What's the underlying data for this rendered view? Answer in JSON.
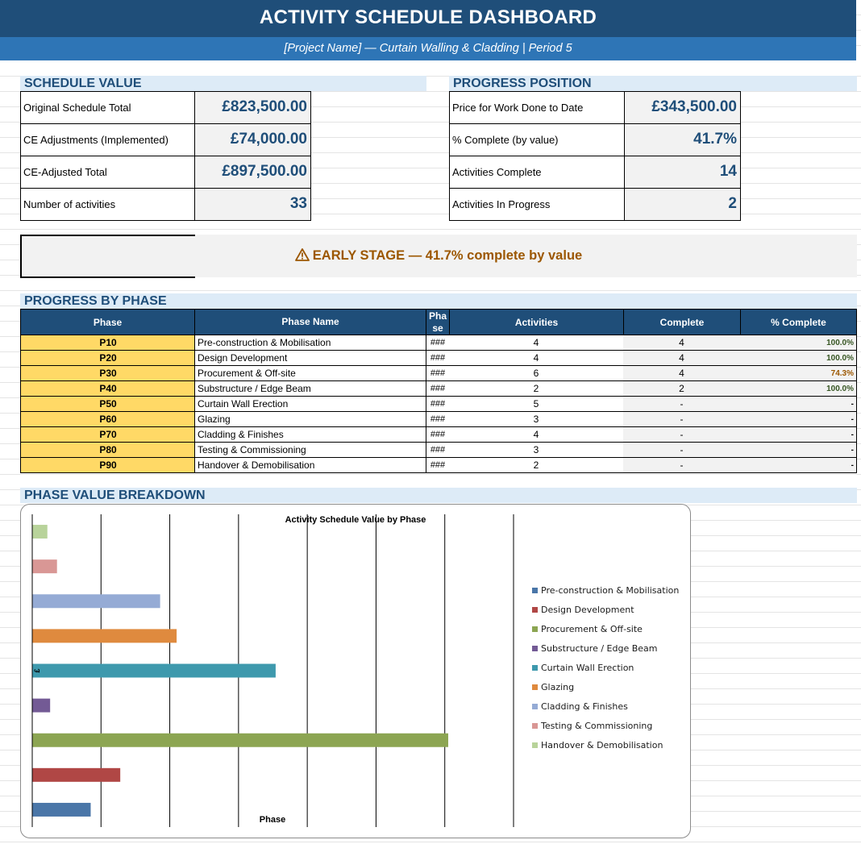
{
  "header": {
    "title": "ACTIVITY SCHEDULE DASHBOARD",
    "subtitle": "[Project Name] — Curtain Walling & Cladding  |  Period 5"
  },
  "schedule_value": {
    "heading": "SCHEDULE VALUE",
    "rows": [
      {
        "label": "Original Schedule Total",
        "value": "£823,500.00"
      },
      {
        "label": "CE Adjustments (Implemented)",
        "value": "£74,000.00"
      },
      {
        "label": "CE-Adjusted Total",
        "value": "£897,500.00"
      },
      {
        "label": "Number of activities",
        "value": "33"
      }
    ]
  },
  "progress_position": {
    "heading": "PROGRESS POSITION",
    "rows": [
      {
        "label": "Price for Work Done to Date",
        "value": "£343,500.00"
      },
      {
        "label": "% Complete (by value)",
        "value": "41.7%"
      },
      {
        "label": "Activities Complete",
        "value": "14"
      },
      {
        "label": "Activities In Progress",
        "value": "2"
      }
    ]
  },
  "status_banner": {
    "text": "EARLY STAGE — 41.7% complete by value",
    "icon": "warning-triangle-icon",
    "color": "#9c5700"
  },
  "progress_by_phase": {
    "heading": "PROGRESS BY PHASE",
    "columns": {
      "phase": "Phase",
      "phase_name": "Phase Name",
      "narrow_line1": "Pha",
      "narrow_line2": "se",
      "activities": "Activities",
      "complete": "Complete",
      "pct_complete": "% Complete"
    },
    "rows": [
      {
        "code": "P10",
        "name": "Pre-construction & Mobilisation",
        "hash": "###",
        "activities": "4",
        "complete": "4",
        "pct": "100.0%",
        "pct_color": "#375623"
      },
      {
        "code": "P20",
        "name": "Design Development",
        "hash": "###",
        "activities": "4",
        "complete": "4",
        "pct": "100.0%",
        "pct_color": "#375623"
      },
      {
        "code": "P30",
        "name": "Procurement & Off-site",
        "hash": "###",
        "activities": "6",
        "complete": "4",
        "pct": "74.3%",
        "pct_color": "#9c5700"
      },
      {
        "code": "P40",
        "name": "Substructure / Edge Beam",
        "hash": "###",
        "activities": "2",
        "complete": "2",
        "pct": "100.0%",
        "pct_color": "#375623"
      },
      {
        "code": "P50",
        "name": "Curtain Wall Erection",
        "hash": "###",
        "activities": "5",
        "complete": "-",
        "pct": "-",
        "pct_color": "#000000"
      },
      {
        "code": "P60",
        "name": "Glazing",
        "hash": "###",
        "activities": "3",
        "complete": "-",
        "pct": "-",
        "pct_color": "#000000"
      },
      {
        "code": "P70",
        "name": "Cladding & Finishes",
        "hash": "###",
        "activities": "4",
        "complete": "-",
        "pct": "-",
        "pct_color": "#000000"
      },
      {
        "code": "P80",
        "name": "Testing & Commissioning",
        "hash": "###",
        "activities": "3",
        "complete": "-",
        "pct": "-",
        "pct_color": "#000000"
      },
      {
        "code": "P90",
        "name": "Handover & Demobilisation",
        "hash": "###",
        "activities": "2",
        "complete": "-",
        "pct": "-",
        "pct_color": "#000000"
      }
    ]
  },
  "phase_value_breakdown": {
    "heading": "PHASE VALUE BREAKDOWN"
  },
  "chart_data": {
    "type": "bar",
    "orientation": "horizontal",
    "title": "Activity Schedule Value by Phase",
    "xlabel": "Phase",
    "ylabel": "£",
    "legend_position": "right",
    "gridlines": "vertical",
    "value_units": "relative (no axis tick labels shown)",
    "series": [
      {
        "name": "Pre-construction & Mobilisation",
        "value": 8.5,
        "color": "#4a76a8"
      },
      {
        "name": "Design Development",
        "value": 12.8,
        "color": "#b04745"
      },
      {
        "name": "Procurement & Off-site",
        "value": 60.5,
        "color": "#8ca552"
      },
      {
        "name": "Substructure / Edge Beam",
        "value": 2.6,
        "color": "#735a95"
      },
      {
        "name": "Curtain Wall Erection",
        "value": 35.4,
        "color": "#3e99ad"
      },
      {
        "name": "Glazing",
        "value": 21.0,
        "color": "#df8a3e"
      },
      {
        "name": "Cladding & Finishes",
        "value": 18.6,
        "color": "#95abd5"
      },
      {
        "name": "Testing & Commissioning",
        "value": 3.6,
        "color": "#d99795"
      },
      {
        "name": "Handover & Demobilisation",
        "value": 2.2,
        "color": "#b8d39a"
      }
    ],
    "x_max": 70
  }
}
